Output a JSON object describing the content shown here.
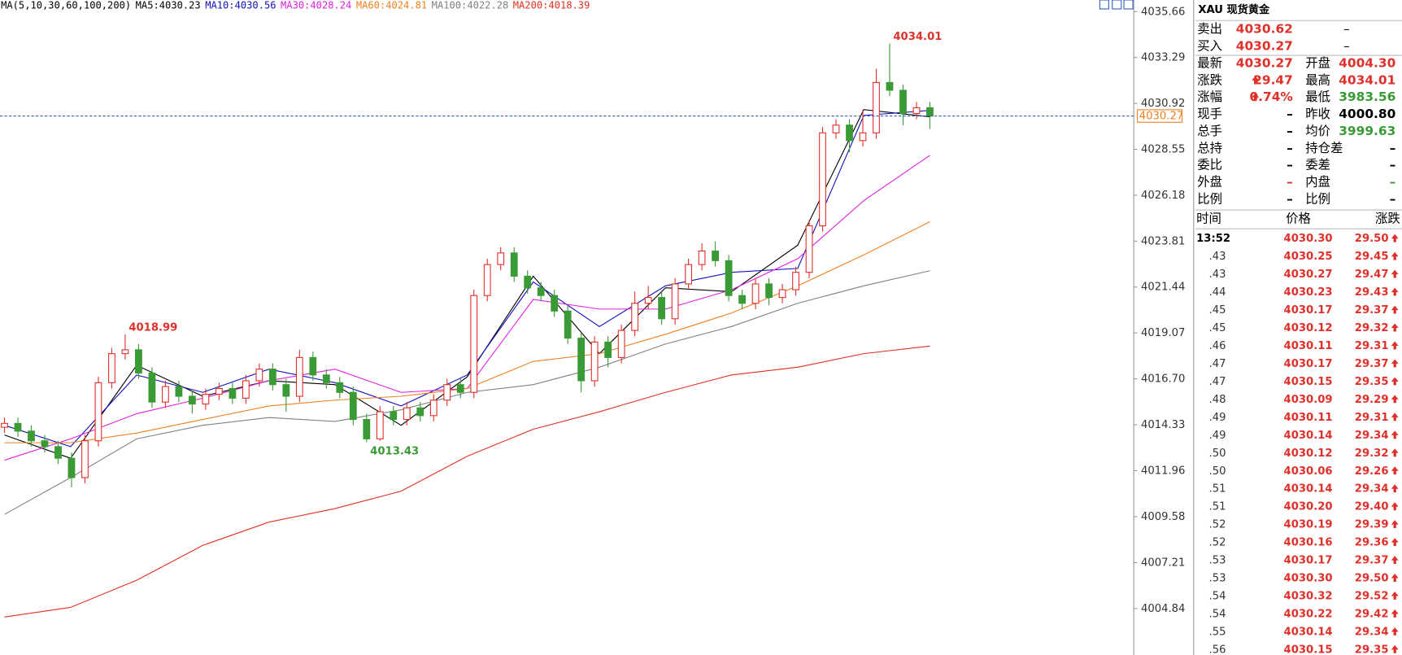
{
  "chart_data": {
    "type": "candlestick",
    "legend_title": "MA(5,10,30,60,100,200)",
    "candles": {
      "open": [
        4014.2,
        4014.4,
        4014.0,
        4013.5,
        4013.2,
        4012.6,
        4011.6,
        4013.5,
        4016.5,
        4018.0,
        4018.2,
        4017.0,
        4015.5,
        4016.3,
        4015.8,
        4015.4,
        4015.9,
        4016.2,
        4015.7,
        4016.6,
        4017.2,
        4016.4,
        4015.8,
        4017.8,
        4016.9,
        4016.5,
        4016.0,
        4014.6,
        4013.6,
        4015.0,
        4014.6,
        4015.2,
        4014.8,
        4015.6,
        4016.4,
        4016.0,
        4021.0,
        4022.6,
        4023.2,
        4022.0,
        4021.4,
        4021.0,
        4020.2,
        4018.8,
        4016.6,
        4018.6,
        4017.8,
        4019.2,
        4020.6,
        4020.9,
        4019.8,
        4021.6,
        4022.6,
        4023.3,
        4022.8,
        4021.0,
        4020.6,
        4021.6,
        4020.9,
        4021.3,
        4022.2,
        4024.6,
        4029.4,
        4029.8,
        4029.0,
        4029.4,
        4032.0,
        4031.6,
        4030.4,
        4030.7
      ],
      "high": [
        4014.7,
        4014.7,
        4014.3,
        4013.8,
        4013.5,
        4012.9,
        4013.8,
        4016.8,
        4018.3,
        4018.99,
        4018.5,
        4017.3,
        4016.6,
        4016.6,
        4016.1,
        4016.2,
        4016.5,
        4016.5,
        4016.9,
        4017.5,
        4017.5,
        4016.7,
        4018.2,
        4018.1,
        4017.2,
        4016.8,
        4016.3,
        4014.9,
        4015.3,
        4015.3,
        4015.5,
        4015.5,
        4015.9,
        4016.7,
        4016.7,
        4021.3,
        4022.9,
        4023.5,
        4023.5,
        4022.3,
        4021.7,
        4021.3,
        4020.5,
        4019.1,
        4018.9,
        4018.9,
        4019.5,
        4021.2,
        4021.5,
        4021.2,
        4021.9,
        4022.9,
        4023.7,
        4023.8,
        4023.1,
        4021.3,
        4021.9,
        4021.9,
        4021.6,
        4022.5,
        4024.9,
        4029.7,
        4030.1,
        4030.1,
        4030.6,
        4032.7,
        4034.01,
        4031.9,
        4031.0,
        4031.0
      ],
      "low": [
        4013.9,
        4013.7,
        4013.2,
        4012.9,
        4012.3,
        4011.1,
        4011.3,
        4013.2,
        4016.2,
        4017.7,
        4016.7,
        4015.2,
        4015.2,
        4015.5,
        4014.9,
        4015.1,
        4015.6,
        4015.4,
        4015.4,
        4016.3,
        4016.1,
        4015.0,
        4015.5,
        4016.6,
        4016.2,
        4015.7,
        4014.3,
        4013.43,
        4013.5,
        4014.3,
        4014.3,
        4014.5,
        4014.5,
        4015.3,
        4015.7,
        4015.7,
        4020.7,
        4022.3,
        4021.7,
        4021.1,
        4020.7,
        4019.9,
        4018.5,
        4016.0,
        4016.3,
        4017.3,
        4017.5,
        4018.9,
        4020.3,
        4019.5,
        4019.5,
        4021.3,
        4022.3,
        4022.5,
        4020.7,
        4020.3,
        4020.3,
        4020.5,
        4020.6,
        4021.0,
        4021.9,
        4024.3,
        4029.1,
        4028.4,
        4028.7,
        4029.1,
        4031.3,
        4029.8,
        4030.1,
        4029.6
      ],
      "close": [
        4014.4,
        4014.0,
        4013.5,
        4013.2,
        4012.6,
        4011.6,
        4013.5,
        4016.5,
        4018.0,
        4018.2,
        4017.0,
        4015.5,
        4016.3,
        4015.8,
        4015.4,
        4015.9,
        4016.2,
        4015.7,
        4016.6,
        4017.2,
        4016.4,
        4015.8,
        4017.8,
        4016.9,
        4016.5,
        4016.0,
        4014.6,
        4013.6,
        4015.0,
        4014.6,
        4015.2,
        4014.8,
        4015.6,
        4016.4,
        4016.0,
        4021.0,
        4022.6,
        4023.2,
        4022.0,
        4021.4,
        4021.0,
        4020.2,
        4018.8,
        4016.6,
        4018.6,
        4017.8,
        4019.2,
        4020.6,
        4020.9,
        4019.8,
        4021.6,
        4022.6,
        4023.3,
        4022.8,
        4021.0,
        4020.6,
        4021.6,
        4020.9,
        4021.3,
        4022.2,
        4024.6,
        4029.4,
        4029.8,
        4029.0,
        4029.4,
        4032.0,
        4031.6,
        4030.4,
        4030.7,
        4030.27
      ]
    },
    "up_color": "#e0302a",
    "down_color": "#3a9a35",
    "series": [
      {
        "name": "MA5:",
        "last": 4030.23,
        "color": "#000000",
        "values": [
          4013.8,
          4012.6,
          4017.4,
          4015.8,
          4016.6,
          4016.4,
          4014.3,
          4016.8,
          4022.0,
          4018.0,
          4021.4,
          4021.2,
          4023.6,
          4030.6,
          4030.23
        ]
      },
      {
        "name": "MA10:",
        "last": 4030.56,
        "color": "#1010c0",
        "values": [
          4014.3,
          4013.2,
          4016.9,
          4016.0,
          4017.2,
          4016.5,
          4015.3,
          4016.9,
          4021.7,
          4019.4,
          4021.5,
          4022.2,
          4022.4,
          4030.3,
          4030.56
        ]
      },
      {
        "name": "MA30:",
        "last": 4028.24,
        "color": "#e020e0",
        "values": [
          4012.5,
          4013.6,
          4014.9,
          4015.7,
          4016.6,
          4017.2,
          4016.0,
          4016.2,
          4020.8,
          4020.3,
          4020.3,
          4021.3,
          4022.9,
          4025.9,
          4028.24
        ]
      },
      {
        "name": "MA60:",
        "last": 4024.81,
        "color": "#f08020",
        "values": [
          4013.4,
          4013.4,
          4013.9,
          4014.6,
          4015.3,
          4015.6,
          4015.8,
          4016.2,
          4017.6,
          4018.0,
          4019.0,
          4020.1,
          4021.5,
          4023.1,
          4024.81
        ]
      },
      {
        "name": "MA100:",
        "last": 4022.28,
        "color": "#808080",
        "values": [
          4009.7,
          4011.6,
          4013.6,
          4014.3,
          4014.7,
          4014.5,
          4015.1,
          4016.0,
          4016.4,
          4017.3,
          4018.5,
          4019.4,
          4020.6,
          4021.5,
          4022.28
        ]
      },
      {
        "name": "MA200:",
        "last": 4018.39,
        "color": "#e03020",
        "values": [
          4004.4,
          4004.9,
          4006.3,
          4008.1,
          4009.3,
          4010.0,
          4010.9,
          4012.7,
          4014.1,
          4015.0,
          4016.0,
          4016.9,
          4017.3,
          4018.0,
          4018.39
        ]
      }
    ],
    "current_price": 4030.27,
    "ylim": [
      4002.44,
      4036.26
    ],
    "yticks": [
      4035.66,
      4033.29,
      4030.92,
      4028.55,
      4026.18,
      4023.81,
      4021.44,
      4019.07,
      {
        "value": 4016.7,
        "label": "4016.70"
      },
      4014.33,
      4011.96,
      4009.58,
      4007.21,
      4004.84
    ]
  },
  "quote": {
    "code": "XAU",
    "name": "现货黄金",
    "rows": [
      {
        "cells": [
          "卖出",
          "4030.62",
          "–"
        ],
        "colors": [
          "#000",
          "#e0302a",
          "#000"
        ]
      },
      {
        "cells": [
          "买入",
          "4030.27",
          "–"
        ],
        "colors": [
          "#000",
          "#e0302a",
          "#000"
        ]
      },
      {
        "cells": [
          "最新",
          "4030.27",
          "开盘",
          "4004.30"
        ],
        "colors": [
          "#000",
          "#e0302a",
          "#000",
          "#e0302a"
        ]
      },
      {
        "cells": [
          "涨跌",
          "29.47",
          "最高",
          "4034.01"
        ],
        "colors": [
          "#000",
          "#e0302a",
          "#000",
          "#e0302a"
        ],
        "up_arrow": true
      },
      {
        "cells": [
          "涨幅",
          "0.74%",
          "最低",
          "3983.56"
        ],
        "colors": [
          "#000",
          "#e0302a",
          "#000",
          "#3a9a35"
        ],
        "up_arrow": true
      },
      {
        "cells": [
          "现手",
          "–",
          "昨收",
          "4000.80"
        ],
        "colors": [
          "#000",
          "#000",
          "#000",
          "#000"
        ]
      },
      {
        "cells": [
          "总手",
          "–",
          "均价",
          "3999.63"
        ],
        "colors": [
          "#000",
          "#000",
          "#000",
          "#3a9a35"
        ]
      },
      {
        "cells": [
          "总持",
          "–",
          "持仓差",
          "–"
        ],
        "colors": [
          "#000",
          "#000",
          "#000",
          "#000"
        ]
      },
      {
        "cells": [
          "委比",
          "–",
          "委差",
          "–"
        ],
        "colors": [
          "#000",
          "#000",
          "#000",
          "#000"
        ]
      },
      {
        "cells": [
          "外盘",
          "–",
          "内盘",
          "–"
        ],
        "colors": [
          "#000",
          "#e0302a",
          "#000",
          "#3a9a35"
        ]
      },
      {
        "cells": [
          "比例",
          "–",
          "比例",
          "–"
        ],
        "colors": [
          "#000",
          "#000",
          "#000",
          "#000"
        ]
      }
    ]
  },
  "ticks": {
    "headers": [
      "时间",
      "价格",
      "涨跌"
    ],
    "rows": [
      [
        "13:52",
        "4030.30",
        "29.50"
      ],
      [
        ".43",
        "4030.25",
        "29.45"
      ],
      [
        ".43",
        "4030.27",
        "29.47"
      ],
      [
        ".44",
        "4030.23",
        "29.43"
      ],
      [
        ".45",
        "4030.17",
        "29.37"
      ],
      [
        ".45",
        "4030.12",
        "29.32"
      ],
      [
        ".46",
        "4030.11",
        "29.31"
      ],
      [
        ".47",
        "4030.17",
        "29.37"
      ],
      [
        ".47",
        "4030.15",
        "29.35"
      ],
      [
        ".48",
        "4030.09",
        "29.29"
      ],
      [
        ".49",
        "4030.11",
        "29.31"
      ],
      [
        ".49",
        "4030.14",
        "29.34"
      ],
      [
        ".50",
        "4030.12",
        "29.32"
      ],
      [
        ".50",
        "4030.06",
        "29.26"
      ],
      [
        ".51",
        "4030.14",
        "29.34"
      ],
      [
        ".51",
        "4030.20",
        "29.40"
      ],
      [
        ".52",
        "4030.19",
        "29.39"
      ],
      [
        ".52",
        "4030.16",
        "29.36"
      ],
      [
        ".53",
        "4030.17",
        "29.37"
      ],
      [
        ".53",
        "4030.30",
        "29.50"
      ],
      [
        ".54",
        "4030.32",
        "29.52"
      ],
      [
        ".54",
        "4030.22",
        "29.42"
      ],
      [
        ".55",
        "4030.14",
        "29.34"
      ],
      [
        ".56",
        "4030.15",
        "29.35"
      ]
    ]
  }
}
